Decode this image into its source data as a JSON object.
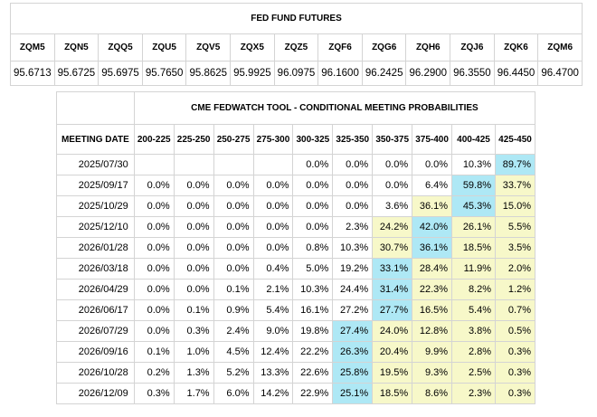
{
  "futures": {
    "title": "FED FUND FUTURES",
    "columns": [
      {
        "code": "ZQM5",
        "price": "95.6713"
      },
      {
        "code": "ZQN5",
        "price": "95.6725"
      },
      {
        "code": "ZQQ5",
        "price": "95.6975"
      },
      {
        "code": "ZQU5",
        "price": "95.7650"
      },
      {
        "code": "ZQV5",
        "price": "95.8625"
      },
      {
        "code": "ZQX5",
        "price": "95.9925"
      },
      {
        "code": "ZQZ5",
        "price": "96.0975"
      },
      {
        "code": "ZQF6",
        "price": "96.1600"
      },
      {
        "code": "ZQG6",
        "price": "96.2425"
      },
      {
        "code": "ZQH6",
        "price": "96.2900"
      },
      {
        "code": "ZQJ6",
        "price": "96.3550"
      },
      {
        "code": "ZQK6",
        "price": "96.4450"
      },
      {
        "code": "ZQM6",
        "price": "96.4700"
      }
    ]
  },
  "probabilities": {
    "title": "CME FEDWATCH TOOL - CONDITIONAL MEETING PROBABILITIES",
    "date_header": "MEETING DATE",
    "ranges": [
      "200-225",
      "225-250",
      "250-275",
      "275-300",
      "300-325",
      "325-350",
      "350-375",
      "375-400",
      "400-425",
      "425-450"
    ],
    "highlight_colors": {
      "max": "#aee8f5",
      "high": "#f7f8c9"
    },
    "rows": [
      {
        "date": "2025/07/30",
        "values": [
          "",
          "",
          "",
          "",
          "0.0%",
          "0.0%",
          "0.0%",
          "0.0%",
          "10.3%",
          "89.7%"
        ],
        "hl": [
          "",
          "",
          "",
          "",
          "",
          "",
          "",
          "",
          "",
          "max"
        ]
      },
      {
        "date": "2025/09/17",
        "values": [
          "0.0%",
          "0.0%",
          "0.0%",
          "0.0%",
          "0.0%",
          "0.0%",
          "0.0%",
          "6.4%",
          "59.8%",
          "33.7%"
        ],
        "hl": [
          "",
          "",
          "",
          "",
          "",
          "",
          "",
          "",
          "max",
          "high"
        ]
      },
      {
        "date": "2025/10/29",
        "values": [
          "0.0%",
          "0.0%",
          "0.0%",
          "0.0%",
          "0.0%",
          "0.0%",
          "3.6%",
          "36.1%",
          "45.3%",
          "15.0%"
        ],
        "hl": [
          "",
          "",
          "",
          "",
          "",
          "",
          "",
          "high",
          "max",
          "high"
        ]
      },
      {
        "date": "2025/12/10",
        "values": [
          "0.0%",
          "0.0%",
          "0.0%",
          "0.0%",
          "0.0%",
          "2.3%",
          "24.2%",
          "42.0%",
          "26.1%",
          "5.5%"
        ],
        "hl": [
          "",
          "",
          "",
          "",
          "",
          "",
          "high",
          "max",
          "high",
          "high"
        ]
      },
      {
        "date": "2026/01/28",
        "values": [
          "0.0%",
          "0.0%",
          "0.0%",
          "0.0%",
          "0.8%",
          "10.3%",
          "30.7%",
          "36.1%",
          "18.5%",
          "3.5%"
        ],
        "hl": [
          "",
          "",
          "",
          "",
          "",
          "",
          "high",
          "max",
          "high",
          "high"
        ]
      },
      {
        "date": "2026/03/18",
        "values": [
          "0.0%",
          "0.0%",
          "0.0%",
          "0.4%",
          "5.0%",
          "19.2%",
          "33.1%",
          "28.4%",
          "11.9%",
          "2.0%"
        ],
        "hl": [
          "",
          "",
          "",
          "",
          "",
          "",
          "max",
          "high",
          "high",
          "high"
        ]
      },
      {
        "date": "2026/04/29",
        "values": [
          "0.0%",
          "0.0%",
          "0.1%",
          "2.1%",
          "10.3%",
          "24.4%",
          "31.4%",
          "22.3%",
          "8.2%",
          "1.2%"
        ],
        "hl": [
          "",
          "",
          "",
          "",
          "",
          "",
          "max",
          "high",
          "high",
          "high"
        ]
      },
      {
        "date": "2026/06/17",
        "values": [
          "0.0%",
          "0.1%",
          "0.9%",
          "5.4%",
          "16.1%",
          "27.2%",
          "27.7%",
          "16.5%",
          "5.4%",
          "0.7%"
        ],
        "hl": [
          "",
          "",
          "",
          "",
          "",
          "",
          "max",
          "high",
          "high",
          "high"
        ]
      },
      {
        "date": "2026/07/29",
        "values": [
          "0.0%",
          "0.3%",
          "2.4%",
          "9.0%",
          "19.8%",
          "27.4%",
          "24.0%",
          "12.8%",
          "3.8%",
          "0.5%"
        ],
        "hl": [
          "",
          "",
          "",
          "",
          "",
          "max",
          "high",
          "high",
          "high",
          "high"
        ]
      },
      {
        "date": "2026/09/16",
        "values": [
          "0.1%",
          "1.0%",
          "4.5%",
          "12.4%",
          "22.2%",
          "26.3%",
          "20.4%",
          "9.9%",
          "2.8%",
          "0.3%"
        ],
        "hl": [
          "",
          "",
          "",
          "",
          "",
          "max",
          "high",
          "high",
          "high",
          "high"
        ]
      },
      {
        "date": "2026/10/28",
        "values": [
          "0.2%",
          "1.3%",
          "5.2%",
          "13.3%",
          "22.6%",
          "25.8%",
          "19.5%",
          "9.3%",
          "2.5%",
          "0.3%"
        ],
        "hl": [
          "",
          "",
          "",
          "",
          "",
          "max",
          "high",
          "high",
          "high",
          "high"
        ]
      },
      {
        "date": "2026/12/09",
        "values": [
          "0.3%",
          "1.7%",
          "6.0%",
          "14.2%",
          "22.9%",
          "25.1%",
          "18.5%",
          "8.6%",
          "2.3%",
          "0.3%"
        ],
        "hl": [
          "",
          "",
          "",
          "",
          "",
          "max",
          "high",
          "high",
          "high",
          "high"
        ]
      }
    ]
  }
}
